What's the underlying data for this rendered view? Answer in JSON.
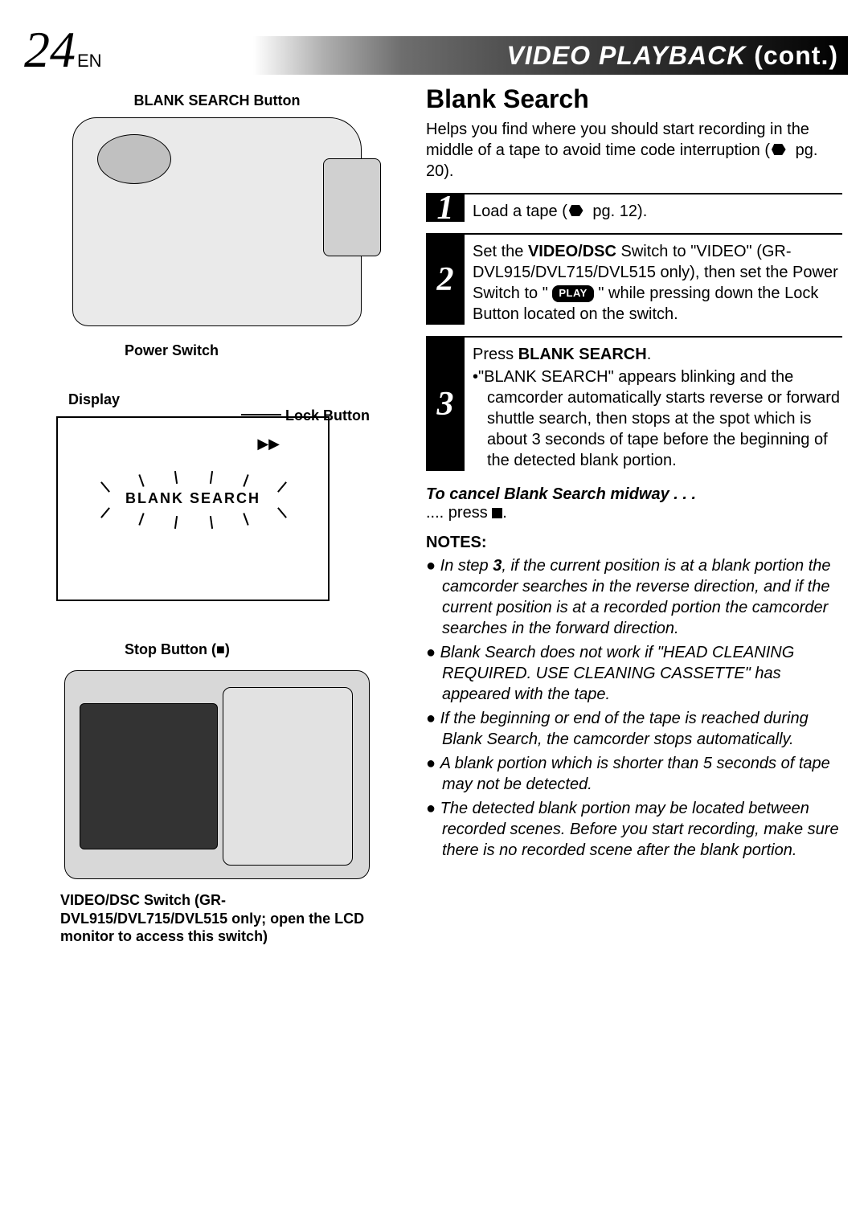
{
  "page": {
    "number": "24",
    "lang": "EN",
    "title_main": "VIDEO   PLAYBACK",
    "title_cont": " (cont.)"
  },
  "left": {
    "blank_search_button": "BLANK SEARCH Button",
    "lock_button": "Lock Button",
    "power_switch": "Power Switch",
    "display": "Display",
    "ff_symbol": "▶▶",
    "blank_search_text": "BLANK  SEARCH",
    "stop_button": "Stop Button (■)",
    "video_dsc": "VIDEO/DSC Switch (GR-DVL915/DVL715/DVL515 only; open the LCD monitor to access this switch)"
  },
  "right": {
    "section_title": "Blank Search",
    "intro_1": "Helps you find where you should start recording in the middle of a tape to avoid time code interruption (",
    "intro_pg": " pg. 20).",
    "steps": {
      "s1_num": "1",
      "s1_a": "Load a tape (",
      "s1_b": " pg. 12).",
      "s2_num": "2",
      "s2_a": "Set the ",
      "s2_b": "VIDEO/DSC",
      "s2_c": " Switch to \"VIDEO\" (GR-DVL915/DVL715/DVL515 only), then set the Power Switch to \" ",
      "s2_play": "PLAY",
      "s2_d": " \" while pressing down the Lock Button located on the switch.",
      "s3_num": "3",
      "s3_a": "Press ",
      "s3_b": "BLANK SEARCH",
      "s3_c": ".",
      "s3_bullet": "•\"BLANK SEARCH\" appears blinking and the camcorder automatically starts reverse or forward shuttle search, then stops at the spot which is about 3 seconds of tape before the beginning of the detected blank portion."
    },
    "cancel_title": "To cancel Blank Search midway . . .",
    "cancel_a": ".... press ",
    "cancel_b": ".",
    "notes_title": "NOTES:",
    "notes": [
      {
        "pre": "In step ",
        "bold": "3",
        "post": ", if the current position is at a blank portion the camcorder searches in the reverse direction, and if the current position is at a recorded portion the camcorder searches in the forward direction."
      },
      {
        "text": "Blank Search does not work if \"HEAD CLEANING REQUIRED. USE CLEANING CASSETTE\" has appeared with the tape."
      },
      {
        "text": "If the beginning or end of the tape is reached during Blank Search, the camcorder stops automatically."
      },
      {
        "text": "A blank portion which is shorter than 5 seconds of tape may not be detected."
      },
      {
        "text": "The detected blank portion may be located between recorded scenes. Before you start recording, make sure there is no recorded scene after the blank portion."
      }
    ]
  }
}
